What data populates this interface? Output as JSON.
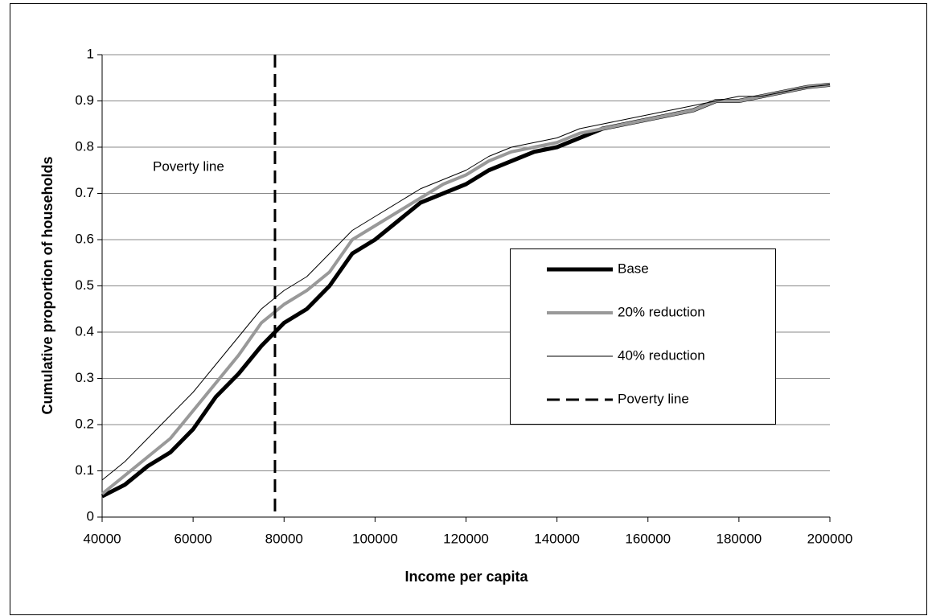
{
  "chart_data": {
    "type": "line",
    "x_label": "Income per capita",
    "y_label": "Cumulative proportion of households",
    "annotation": "Poverty line",
    "x": [
      40000,
      45000,
      50000,
      55000,
      60000,
      65000,
      70000,
      75000,
      80000,
      85000,
      90000,
      95000,
      100000,
      105000,
      110000,
      115000,
      120000,
      125000,
      130000,
      135000,
      140000,
      145000,
      150000,
      155000,
      160000,
      165000,
      170000,
      175000,
      180000,
      185000,
      190000,
      195000,
      200000
    ],
    "series": [
      {
        "name": "Base",
        "color": "#000000",
        "width": 5,
        "values": [
          0.045,
          0.07,
          0.11,
          0.14,
          0.19,
          0.26,
          0.31,
          0.37,
          0.42,
          0.45,
          0.5,
          0.57,
          0.6,
          0.64,
          0.68,
          0.7,
          0.72,
          0.75,
          0.77,
          0.79,
          0.8,
          0.82,
          0.84,
          0.85,
          0.86,
          0.87,
          0.88,
          0.9,
          0.9,
          0.91,
          0.92,
          0.93,
          0.935
        ]
      },
      {
        "name": "20% reduction",
        "color": "#999999",
        "width": 4,
        "values": [
          0.05,
          0.09,
          0.13,
          0.17,
          0.23,
          0.29,
          0.35,
          0.42,
          0.46,
          0.49,
          0.53,
          0.6,
          0.63,
          0.66,
          0.69,
          0.72,
          0.74,
          0.77,
          0.79,
          0.8,
          0.81,
          0.83,
          0.84,
          0.85,
          0.86,
          0.87,
          0.88,
          0.9,
          0.9,
          0.91,
          0.92,
          0.93,
          0.935
        ]
      },
      {
        "name": "40% reduction",
        "color": "#000000",
        "width": 1,
        "values": [
          0.08,
          0.12,
          0.17,
          0.22,
          0.27,
          0.33,
          0.39,
          0.45,
          0.49,
          0.52,
          0.57,
          0.62,
          0.65,
          0.68,
          0.71,
          0.73,
          0.75,
          0.78,
          0.8,
          0.81,
          0.82,
          0.84,
          0.85,
          0.86,
          0.87,
          0.88,
          0.89,
          0.9,
          0.91,
          0.91,
          0.92,
          0.93,
          0.935
        ]
      }
    ],
    "vlines": [
      {
        "name": "Poverty line",
        "x": 78000,
        "color": "#000000",
        "dashed": true
      }
    ],
    "xlim": [
      40000,
      200000
    ],
    "xticks": [
      40000,
      60000,
      80000,
      100000,
      120000,
      140000,
      160000,
      180000,
      200000
    ],
    "ylim": [
      0,
      1
    ],
    "yticks": [
      0,
      0.1,
      0.2,
      0.3,
      0.4,
      0.5,
      0.6,
      0.7,
      0.8,
      0.9,
      1
    ],
    "grid": true
  }
}
